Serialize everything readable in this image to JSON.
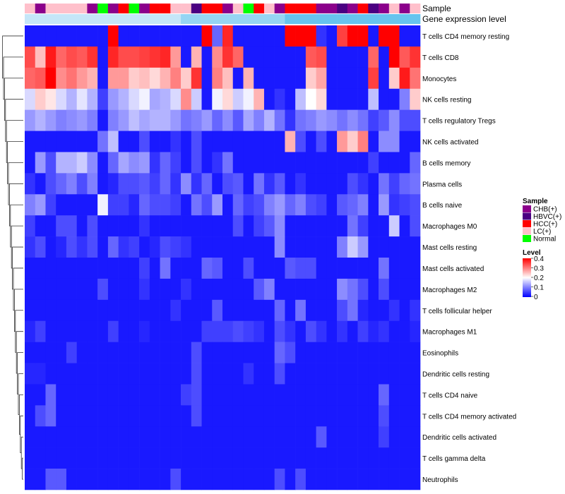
{
  "chart_data": {
    "type": "heatmap",
    "annotation_labels": [
      "Sample",
      "Gene expression level"
    ],
    "rows": [
      "T cells CD4 memory resting",
      "T cells CD8",
      "Monocytes",
      "NK cells resting",
      "T cells regulatory  Tregs",
      "NK cells activated",
      "B cells memory",
      "Plasma cells",
      "B cells naive",
      "Macrophages M0",
      "Mast cells resting",
      "Mast cells activated",
      "Macrophages M2",
      "T cells follicular helper",
      "Macrophages M1",
      "Eosinophils",
      "Dendritic cells resting",
      "T cells CD4 naive",
      "T cells CD4 memory activated",
      "Dendritic cells activated",
      "T cells gamma delta",
      "Neutrophils"
    ],
    "sample_groups": [
      "LC(+)",
      "CHB(+)",
      "LC(+)",
      "LC(+)",
      "LC(+)",
      "LC(+)",
      "CHB(+)",
      "Normal",
      "CHB(+)",
      "HCC(+)",
      "Normal",
      "CHB(+)",
      "HCC(+)",
      "HCC(+)",
      "LC(+)",
      "LC(+)",
      "HBVC(+)",
      "HCC(+)",
      "HCC(+)",
      "CHB(+)",
      "LC(+)",
      "Normal",
      "HCC(+)",
      "LC(+)",
      "CHB(+)",
      "HCC(+)",
      "HCC(+)",
      "HCC(+)",
      "CHB(+)",
      "CHB(+)",
      "HBVC(+)",
      "CHB(+)",
      "HCC(+)",
      "HBVC(+)",
      "CHB(+)",
      "LC(+)",
      "CHB(+)",
      "LC(+)"
    ],
    "expression_level": [
      0.05,
      0.05,
      0.05,
      0.05,
      0.05,
      0.05,
      0.05,
      0.05,
      0.05,
      0.05,
      0.05,
      0.05,
      0.05,
      0.05,
      0.05,
      0.15,
      0.15,
      0.15,
      0.15,
      0.15,
      0.15,
      0.15,
      0.15,
      0.15,
      0.15,
      0.25,
      0.25,
      0.25,
      0.25,
      0.25,
      0.25,
      0.25,
      0.25,
      0.25,
      0.25,
      0.25,
      0.25,
      0.25
    ],
    "values": [
      [
        0.02,
        0.02,
        0.02,
        0.02,
        0.02,
        0.02,
        0.02,
        0.02,
        0.4,
        0.02,
        0.02,
        0.02,
        0.02,
        0.02,
        0.02,
        0.02,
        0.02,
        0.4,
        0.08,
        0.37,
        0.02,
        0.02,
        0.02,
        0.02,
        0.02,
        0.4,
        0.4,
        0.4,
        0.04,
        0.02,
        0.35,
        0.4,
        0.4,
        0.02,
        0.4,
        0.4,
        0.02,
        0.02
      ],
      [
        0.34,
        0.25,
        0.38,
        0.32,
        0.34,
        0.33,
        0.36,
        0.02,
        0.37,
        0.34,
        0.34,
        0.35,
        0.36,
        0.37,
        0.28,
        0.02,
        0.26,
        0.02,
        0.29,
        0.36,
        0.32,
        0.02,
        0.02,
        0.02,
        0.02,
        0.02,
        0.02,
        0.33,
        0.34,
        0.02,
        0.02,
        0.02,
        0.02,
        0.32,
        0.02,
        0.4,
        0.33,
        0.36
      ],
      [
        0.32,
        0.33,
        0.4,
        0.29,
        0.31,
        0.28,
        0.26,
        0.02,
        0.28,
        0.28,
        0.24,
        0.25,
        0.23,
        0.26,
        0.3,
        0.24,
        0.36,
        0.02,
        0.3,
        0.25,
        0.02,
        0.26,
        0.02,
        0.02,
        0.02,
        0.02,
        0.02,
        0.24,
        0.27,
        0.02,
        0.02,
        0.02,
        0.02,
        0.35,
        0.02,
        0.24,
        0.38,
        0.31
      ],
      [
        0.17,
        0.24,
        0.22,
        0.17,
        0.14,
        0.18,
        0.14,
        0.05,
        0.12,
        0.14,
        0.17,
        0.19,
        0.13,
        0.14,
        0.17,
        0.29,
        0.16,
        0.02,
        0.19,
        0.23,
        0.16,
        0.19,
        0.26,
        0.02,
        0.04,
        0.02,
        0.15,
        0.2,
        0.23,
        0.02,
        0.02,
        0.02,
        0.02,
        0.15,
        0.02,
        0.02,
        0.1,
        0.24
      ],
      [
        0.12,
        0.14,
        0.12,
        0.1,
        0.11,
        0.12,
        0.1,
        0.02,
        0.1,
        0.12,
        0.15,
        0.13,
        0.14,
        0.14,
        0.12,
        0.09,
        0.1,
        0.12,
        0.08,
        0.11,
        0.07,
        0.13,
        0.1,
        0.14,
        0.09,
        0.04,
        0.09,
        0.1,
        0.12,
        0.11,
        0.09,
        0.11,
        0.09,
        0.05,
        0.07,
        0.11,
        0.06,
        0.06
      ],
      [
        0.02,
        0.02,
        0.02,
        0.02,
        0.02,
        0.02,
        0.02,
        0.09,
        0.15,
        0.02,
        0.02,
        0.06,
        0.02,
        0.02,
        0.04,
        0.02,
        0.06,
        0.02,
        0.02,
        0.02,
        0.02,
        0.02,
        0.02,
        0.02,
        0.02,
        0.26,
        0.06,
        0.02,
        0.06,
        0.02,
        0.28,
        0.24,
        0.3,
        0.02,
        0.11,
        0.11,
        0.02,
        0.02
      ],
      [
        0.02,
        0.12,
        0.06,
        0.14,
        0.14,
        0.16,
        0.11,
        0.02,
        0.08,
        0.13,
        0.11,
        0.12,
        0.04,
        0.08,
        0.05,
        0.02,
        0.06,
        0.02,
        0.04,
        0.09,
        0.02,
        0.02,
        0.02,
        0.02,
        0.02,
        0.02,
        0.02,
        0.02,
        0.02,
        0.02,
        0.02,
        0.02,
        0.02,
        0.05,
        0.02,
        0.02,
        0.02,
        0.08
      ],
      [
        0.04,
        0.02,
        0.06,
        0.08,
        0.1,
        0.06,
        0.1,
        0.02,
        0.03,
        0.06,
        0.06,
        0.07,
        0.05,
        0.08,
        0.04,
        0.11,
        0.04,
        0.08,
        0.02,
        0.06,
        0.07,
        0.02,
        0.09,
        0.04,
        0.07,
        0.02,
        0.04,
        0.02,
        0.02,
        0.02,
        0.02,
        0.06,
        0.04,
        0.02,
        0.09,
        0.05,
        0.08,
        0.09
      ],
      [
        0.1,
        0.12,
        0.05,
        0.02,
        0.02,
        0.02,
        0.02,
        0.19,
        0.05,
        0.05,
        0.03,
        0.08,
        0.06,
        0.06,
        0.05,
        0.02,
        0.09,
        0.06,
        0.12,
        0.02,
        0.08,
        0.05,
        0.06,
        0.1,
        0.12,
        0.08,
        0.1,
        0.06,
        0.05,
        0.02,
        0.07,
        0.08,
        0.1,
        0.02,
        0.12,
        0.04,
        0.05,
        0.06
      ],
      [
        0.05,
        0.02,
        0.02,
        0.06,
        0.06,
        0.02,
        0.06,
        0.02,
        0.02,
        0.02,
        0.02,
        0.04,
        0.02,
        0.02,
        0.02,
        0.02,
        0.02,
        0.02,
        0.02,
        0.02,
        0.06,
        0.02,
        0.05,
        0.07,
        0.11,
        0.02,
        0.02,
        0.02,
        0.02,
        0.02,
        0.02,
        0.09,
        0.05,
        0.02,
        0.02,
        0.16,
        0.02,
        0.06
      ],
      [
        0.04,
        0.06,
        0.02,
        0.03,
        0.06,
        0.04,
        0.06,
        0.02,
        0.08,
        0.04,
        0.05,
        0.02,
        0.03,
        0.06,
        0.05,
        0.04,
        0.02,
        0.02,
        0.02,
        0.02,
        0.02,
        0.02,
        0.02,
        0.02,
        0.11,
        0.02,
        0.02,
        0.02,
        0.02,
        0.02,
        0.1,
        0.16,
        0.12,
        0.02,
        0.02,
        0.02,
        0.02,
        0.02
      ],
      [
        0.02,
        0.02,
        0.02,
        0.02,
        0.02,
        0.02,
        0.02,
        0.02,
        0.02,
        0.02,
        0.02,
        0.05,
        0.02,
        0.09,
        0.02,
        0.02,
        0.02,
        0.08,
        0.07,
        0.02,
        0.02,
        0.06,
        0.02,
        0.02,
        0.02,
        0.07,
        0.06,
        0.06,
        0.02,
        0.02,
        0.02,
        0.02,
        0.02,
        0.02,
        0.09,
        0.02,
        0.02,
        0.02
      ],
      [
        0.02,
        0.02,
        0.02,
        0.02,
        0.02,
        0.02,
        0.02,
        0.06,
        0.02,
        0.02,
        0.02,
        0.04,
        0.02,
        0.02,
        0.02,
        0.04,
        0.02,
        0.02,
        0.02,
        0.02,
        0.02,
        0.02,
        0.07,
        0.1,
        0.02,
        0.02,
        0.02,
        0.02,
        0.02,
        0.02,
        0.11,
        0.09,
        0.06,
        0.02,
        0.06,
        0.02,
        0.02,
        0.02
      ],
      [
        0.02,
        0.02,
        0.02,
        0.02,
        0.02,
        0.02,
        0.02,
        0.02,
        0.02,
        0.02,
        0.02,
        0.02,
        0.02,
        0.02,
        0.04,
        0.02,
        0.02,
        0.02,
        0.07,
        0.02,
        0.02,
        0.02,
        0.02,
        0.02,
        0.08,
        0.02,
        0.09,
        0.02,
        0.02,
        0.02,
        0.06,
        0.09,
        0.03,
        0.02,
        0.02,
        0.04,
        0.02,
        0.04
      ],
      [
        0.03,
        0.05,
        0.02,
        0.02,
        0.02,
        0.02,
        0.02,
        0.02,
        0.05,
        0.02,
        0.02,
        0.03,
        0.02,
        0.02,
        0.02,
        0.02,
        0.02,
        0.05,
        0.05,
        0.05,
        0.06,
        0.05,
        0.04,
        0.02,
        0.06,
        0.04,
        0.02,
        0.06,
        0.04,
        0.02,
        0.04,
        0.02,
        0.05,
        0.03,
        0.04,
        0.02,
        0.02,
        0.03
      ],
      [
        0.02,
        0.02,
        0.02,
        0.02,
        0.05,
        0.02,
        0.02,
        0.02,
        0.02,
        0.02,
        0.02,
        0.02,
        0.02,
        0.02,
        0.02,
        0.02,
        0.06,
        0.02,
        0.02,
        0.02,
        0.02,
        0.02,
        0.02,
        0.02,
        0.08,
        0.06,
        0.02,
        0.02,
        0.02,
        0.02,
        0.02,
        0.02,
        0.02,
        0.02,
        0.02,
        0.02,
        0.02,
        0.02
      ],
      [
        0.03,
        0.03,
        0.02,
        0.02,
        0.02,
        0.02,
        0.02,
        0.02,
        0.02,
        0.02,
        0.02,
        0.02,
        0.02,
        0.02,
        0.02,
        0.02,
        0.06,
        0.02,
        0.02,
        0.02,
        0.02,
        0.04,
        0.02,
        0.02,
        0.06,
        0.02,
        0.02,
        0.02,
        0.02,
        0.02,
        0.02,
        0.02,
        0.02,
        0.02,
        0.02,
        0.02,
        0.02,
        0.02
      ],
      [
        0.02,
        0.02,
        0.08,
        0.02,
        0.02,
        0.02,
        0.02,
        0.02,
        0.02,
        0.02,
        0.02,
        0.02,
        0.02,
        0.02,
        0.02,
        0.05,
        0.06,
        0.02,
        0.02,
        0.02,
        0.02,
        0.02,
        0.02,
        0.02,
        0.02,
        0.02,
        0.02,
        0.02,
        0.02,
        0.02,
        0.02,
        0.02,
        0.02,
        0.02,
        0.08,
        0.02,
        0.02,
        0.02
      ],
      [
        0.02,
        0.06,
        0.08,
        0.02,
        0.02,
        0.02,
        0.02,
        0.02,
        0.02,
        0.02,
        0.02,
        0.02,
        0.02,
        0.02,
        0.02,
        0.02,
        0.06,
        0.02,
        0.02,
        0.02,
        0.02,
        0.02,
        0.02,
        0.02,
        0.02,
        0.02,
        0.02,
        0.02,
        0.02,
        0.02,
        0.02,
        0.02,
        0.02,
        0.02,
        0.06,
        0.02,
        0.02,
        0.02
      ],
      [
        0.02,
        0.02,
        0.02,
        0.02,
        0.02,
        0.02,
        0.02,
        0.02,
        0.02,
        0.02,
        0.02,
        0.02,
        0.02,
        0.02,
        0.02,
        0.02,
        0.02,
        0.02,
        0.02,
        0.02,
        0.02,
        0.02,
        0.02,
        0.02,
        0.02,
        0.02,
        0.02,
        0.02,
        0.07,
        0.02,
        0.02,
        0.02,
        0.02,
        0.02,
        0.05,
        0.02,
        0.02,
        0.02
      ],
      [
        0.02,
        0.02,
        0.02,
        0.02,
        0.02,
        0.02,
        0.02,
        0.02,
        0.02,
        0.02,
        0.02,
        0.02,
        0.02,
        0.02,
        0.02,
        0.02,
        0.02,
        0.02,
        0.02,
        0.02,
        0.02,
        0.02,
        0.02,
        0.02,
        0.02,
        0.02,
        0.02,
        0.02,
        0.02,
        0.02,
        0.02,
        0.02,
        0.02,
        0.02,
        0.02,
        0.02,
        0.02,
        0.02
      ],
      [
        0.02,
        0.02,
        0.07,
        0.07,
        0.02,
        0.02,
        0.02,
        0.02,
        0.02,
        0.02,
        0.02,
        0.02,
        0.02,
        0.02,
        0.06,
        0.02,
        0.02,
        0.02,
        0.02,
        0.02,
        0.02,
        0.02,
        0.02,
        0.02,
        0.06,
        0.02,
        0.06,
        0.02,
        0.02,
        0.02,
        0.02,
        0.02,
        0.02,
        0.02,
        0.02,
        0.02,
        0.02,
        0.02
      ]
    ],
    "color_scale": {
      "low": "#0000ff",
      "mid": "#ffffff",
      "high": "#ff0000",
      "domain": [
        0,
        0.2,
        0.4
      ]
    },
    "legend": {
      "sample_title": "Sample",
      "sample_items": [
        {
          "label": "CHB(+)",
          "color": "#8b008b"
        },
        {
          "label": "HBVC(+)",
          "color": "#4b0082"
        },
        {
          "label": "HCC(+)",
          "color": "#ff0000"
        },
        {
          "label": "LC(+)",
          "color": "#ffc0cb"
        },
        {
          "label": "Normal",
          "color": "#00ff00"
        }
      ],
      "level_title": "Level",
      "level_ticks": [
        "0.4",
        "0.3",
        "0.2",
        "0.1",
        "0"
      ]
    }
  }
}
